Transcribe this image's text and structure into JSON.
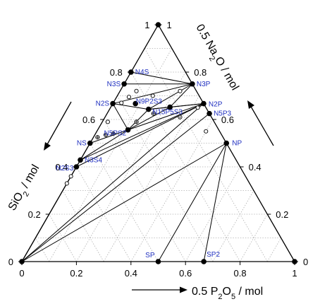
{
  "chart_data": {
    "type": "scatter",
    "diagram": "ternary",
    "axis_labels": {
      "bottom": [
        "0.5 P",
        "2",
        "O",
        "5",
        " / mol"
      ],
      "left": [
        "SiO",
        "2",
        " / mol"
      ],
      "right": [
        "0.5 Na",
        "2",
        "O / mol"
      ]
    },
    "ticks": {
      "bottom": [
        "0",
        "0.2",
        "0.4",
        "0.6",
        "0.8",
        "1"
      ],
      "left": [
        "1",
        "0.8",
        "0.6",
        "0.4",
        "0.2",
        "0"
      ],
      "right": [
        "0",
        "0.2",
        "0.4",
        "0.6",
        "0.8",
        "1"
      ]
    },
    "ranges": {
      "p2o5": [
        0,
        1
      ],
      "na2o": [
        0,
        1
      ],
      "sio2": [
        0,
        1
      ]
    },
    "grid": true,
    "compounds": [
      {
        "label": "N4S",
        "p2o5": 0.0,
        "na2o": 0.8,
        "sio2": 0.2
      },
      {
        "label": "N3S",
        "p2o5": 0.0,
        "na2o": 0.75,
        "sio2": 0.25
      },
      {
        "label": "N2S",
        "p2o5": 0.0,
        "na2o": 0.667,
        "sio2": 0.333
      },
      {
        "label": "NS",
        "p2o5": 0.0,
        "na2o": 0.5,
        "sio2": 0.5
      },
      {
        "label": "N3S4",
        "p2o5": 0.0,
        "na2o": 0.429,
        "sio2": 0.571
      },
      {
        "label": "N2S3",
        "p2o5": 0.0,
        "na2o": 0.4,
        "sio2": 0.6
      },
      {
        "label": "N3P",
        "p2o5": 0.25,
        "na2o": 0.75,
        "sio2": 0.0
      },
      {
        "label": "N2P",
        "p2o5": 0.333,
        "na2o": 0.667,
        "sio2": 0.0
      },
      {
        "label": "N5P3",
        "p2o5": 0.375,
        "na2o": 0.625,
        "sio2": 0.0
      },
      {
        "label": "NP",
        "p2o5": 0.5,
        "na2o": 0.5,
        "sio2": 0.0
      },
      {
        "label": "SP",
        "p2o5": 0.5,
        "na2o": 0.0,
        "sio2": 0.5
      },
      {
        "label": "SP2",
        "p2o5": 0.667,
        "na2o": 0.0,
        "sio2": 0.333
      },
      {
        "label": "N9P2S3",
        "p2o5": 0.143,
        "na2o": 0.643,
        "sio2": 0.214
      },
      {
        "label": "N15P5S3",
        "p2o5": 0.217,
        "na2o": 0.652,
        "sio2": 0.13
      },
      {
        "label": "N5PS2",
        "p2o5": 0.111,
        "na2o": 0.556,
        "sio2": 0.333
      }
    ],
    "unlabeled_compounds": [
      {
        "p2o5": 0.0,
        "na2o": 0.0,
        "sio2": 1.0
      },
      {
        "p2o5": 0.0,
        "na2o": 1.0,
        "sio2": 0.0
      },
      {
        "p2o5": 1.0,
        "na2o": 0.0,
        "sio2": 0.0
      },
      {
        "p2o5": 0.083,
        "na2o": 0.667,
        "sio2": 0.25
      }
    ],
    "tie_lines": [
      [
        "N4S",
        "N3P"
      ],
      [
        "N3S",
        "N3P"
      ],
      [
        "N2S",
        "N3P"
      ],
      [
        "N2S",
        "N9P2S3"
      ],
      [
        "N9P2S3",
        "N3P"
      ],
      [
        "N9P2S3",
        "N2P"
      ],
      [
        "N9P2S3",
        "N15P5S3"
      ],
      [
        "N15P5S3",
        "N3P"
      ],
      [
        "N15P5S3",
        "N2P"
      ],
      [
        "NS",
        "N5PS2"
      ],
      [
        "N5PS2",
        "N9P2S3"
      ],
      [
        "N5PS2",
        "N15P5S3"
      ],
      [
        "N5PS2",
        "N2P"
      ],
      [
        "N3S4",
        "N2P"
      ],
      [
        "N2S3",
        "N2P"
      ],
      [
        "SiO2",
        "N2P"
      ],
      [
        "SiO2",
        "N5P3"
      ],
      [
        "SiO2",
        "NP"
      ],
      [
        "SiO2",
        "NS"
      ],
      [
        "SiO2",
        "N2S3"
      ],
      [
        "NP",
        "SP"
      ],
      [
        "NP",
        "SP2"
      ],
      [
        "N2S",
        "N5PS2"
      ],
      [
        "N3S4",
        "N5PS2"
      ]
    ],
    "open_markers": [
      {
        "marker": "circle",
        "p2o5": 0.06,
        "na2o": 0.72,
        "sio2": 0.22
      },
      {
        "marker": "circle",
        "p2o5": 0.045,
        "na2o": 0.695,
        "sio2": 0.26
      },
      {
        "marker": "circle",
        "p2o5": 0.03,
        "na2o": 0.67,
        "sio2": 0.3
      },
      {
        "marker": "circle",
        "p2o5": 0.13,
        "na2o": 0.7,
        "sio2": 0.17
      },
      {
        "marker": "circle",
        "p2o5": 0.22,
        "na2o": 0.72,
        "sio2": 0.06
      },
      {
        "marker": "circle",
        "p2o5": 0.32,
        "na2o": 0.65,
        "sio2": 0.03
      },
      {
        "marker": "circle",
        "p2o5": 0.4,
        "na2o": 0.55,
        "sio2": 0.05
      },
      {
        "marker": "circle",
        "p2o5": 0.02,
        "na2o": 0.59,
        "sio2": 0.39
      },
      {
        "marker": "circle-cross",
        "p2o5": 0.015,
        "na2o": 0.525,
        "sio2": 0.46
      },
      {
        "marker": "circle-cross",
        "p2o5": 0.04,
        "na2o": 0.535,
        "sio2": 0.425
      },
      {
        "marker": "circle-cross",
        "p2o5": 0.065,
        "na2o": 0.54,
        "sio2": 0.395
      },
      {
        "marker": "circle-cross",
        "p2o5": 0.125,
        "na2o": 0.59,
        "sio2": 0.285
      },
      {
        "marker": "circle-cross",
        "p2o5": 0.17,
        "na2o": 0.625,
        "sio2": 0.205
      },
      {
        "marker": "circle-dot",
        "p2o5": 0.275,
        "na2o": 0.61,
        "sio2": 0.115
      },
      {
        "marker": "circle",
        "p2o5": 0.0,
        "na2o": 0.4,
        "sio2": 0.6
      },
      {
        "marker": "circle",
        "p2o5": 0.0,
        "na2o": 0.36,
        "sio2": 0.64
      },
      {
        "marker": "circle",
        "p2o5": 0.0,
        "na2o": 0.33,
        "sio2": 0.67
      }
    ],
    "colors": {
      "frame": "#000000",
      "grid": "#b0b0b0",
      "label": "#2030c0"
    }
  }
}
